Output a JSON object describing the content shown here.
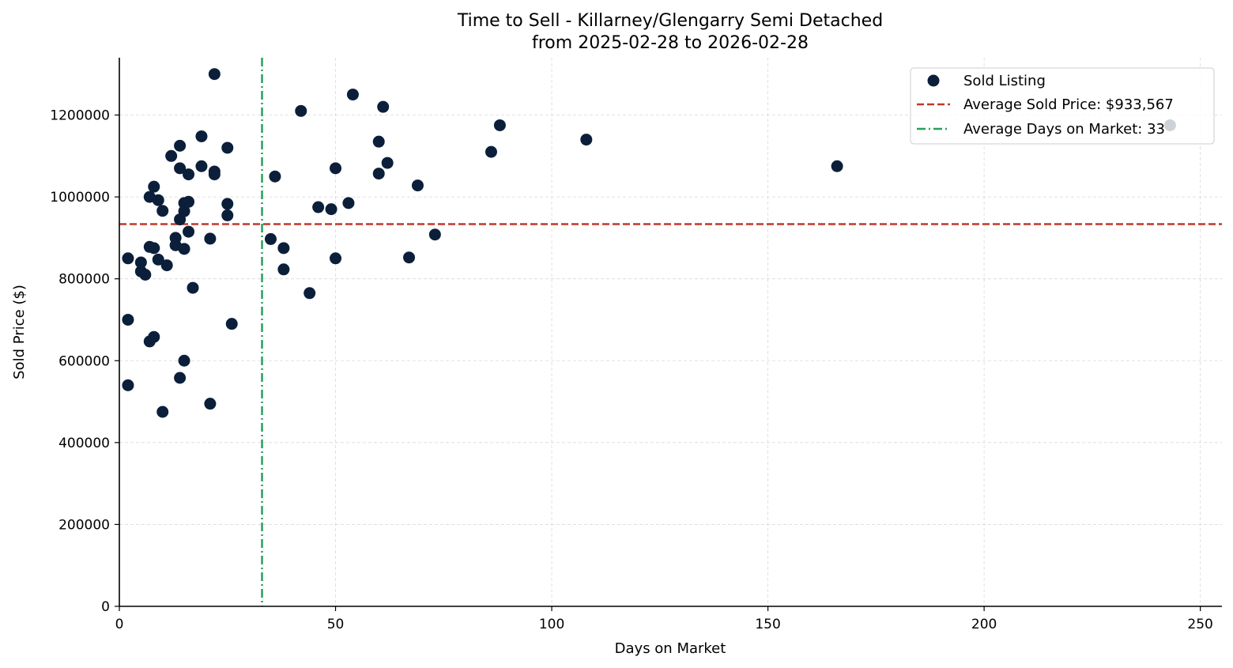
{
  "chart_data": {
    "type": "scatter",
    "title": "Time to Sell - Killarney/Glengarry Semi Detached",
    "subtitle": "from 2025-02-28 to 2026-02-28",
    "xlabel": "Days on Market",
    "ylabel": "Sold Price ($)",
    "xlim": [
      0,
      255
    ],
    "ylim": [
      0,
      1340000
    ],
    "xticks": [
      0,
      50,
      100,
      150,
      200,
      250
    ],
    "yticks": [
      0,
      200000,
      400000,
      600000,
      800000,
      1000000,
      1200000
    ],
    "xtick_labels": [
      "0",
      "50",
      "100",
      "150",
      "200",
      "250"
    ],
    "ytick_labels": [
      "0",
      "200000",
      "400000",
      "600000",
      "800000",
      "1000000",
      "1200000"
    ],
    "grid": true,
    "legend_position": "top-right",
    "legend": {
      "scatter_label": "Sold Listing",
      "avg_price_label": "Average Sold Price: $933,567",
      "avg_days_label": "Average Days on Market: 33"
    },
    "average_price": 933567,
    "average_days": 33,
    "colors": {
      "points": "#0b1f3a",
      "avg_price_line": "#c0392b",
      "avg_days_line": "#27a05a",
      "grid": "#d9d9d9",
      "axis": "#000000"
    },
    "series": [
      {
        "name": "Sold Listing",
        "points": [
          [
            2,
            850000
          ],
          [
            2,
            700000
          ],
          [
            2,
            540000
          ],
          [
            5,
            840000
          ],
          [
            5,
            818000
          ],
          [
            6,
            810000
          ],
          [
            7,
            1000000
          ],
          [
            7,
            878000
          ],
          [
            7,
            647000
          ],
          [
            8,
            1025000
          ],
          [
            8,
            875000
          ],
          [
            8,
            658000
          ],
          [
            9,
            992000
          ],
          [
            9,
            847000
          ],
          [
            10,
            966000
          ],
          [
            10,
            475000
          ],
          [
            11,
            833000
          ],
          [
            12,
            1100000
          ],
          [
            13,
            900000
          ],
          [
            13,
            882000
          ],
          [
            14,
            1125000
          ],
          [
            14,
            1070000
          ],
          [
            14,
            945000
          ],
          [
            14,
            558000
          ],
          [
            15,
            985000
          ],
          [
            15,
            965000
          ],
          [
            15,
            873000
          ],
          [
            15,
            600000
          ],
          [
            16,
            1055000
          ],
          [
            16,
            988000
          ],
          [
            16,
            915000
          ],
          [
            17,
            778000
          ],
          [
            19,
            1148000
          ],
          [
            19,
            1075000
          ],
          [
            21,
            898000
          ],
          [
            21,
            495000
          ],
          [
            22,
            1300000
          ],
          [
            22,
            1062000
          ],
          [
            22,
            1055000
          ],
          [
            25,
            1120000
          ],
          [
            25,
            983000
          ],
          [
            25,
            955000
          ],
          [
            26,
            690000
          ],
          [
            35,
            897000
          ],
          [
            36,
            1050000
          ],
          [
            38,
            875000
          ],
          [
            38,
            823000
          ],
          [
            42,
            1210000
          ],
          [
            44,
            765000
          ],
          [
            46,
            975000
          ],
          [
            49,
            970000
          ],
          [
            50,
            1070000
          ],
          [
            50,
            850000
          ],
          [
            53,
            985000
          ],
          [
            54,
            1250000
          ],
          [
            60,
            1135000
          ],
          [
            60,
            1057000
          ],
          [
            61,
            1220000
          ],
          [
            62,
            1083000
          ],
          [
            67,
            852000
          ],
          [
            69,
            1028000
          ],
          [
            73,
            908000
          ],
          [
            86,
            1110000
          ],
          [
            88,
            1175000
          ],
          [
            108,
            1140000
          ],
          [
            166,
            1075000
          ],
          [
            243,
            1175000
          ]
        ]
      }
    ]
  }
}
